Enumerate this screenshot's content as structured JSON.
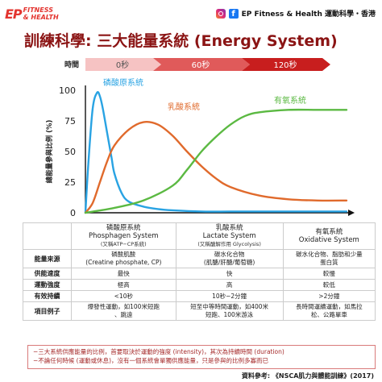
{
  "brand": {
    "logo_ep": "EP",
    "logo_line1": "FITNESS",
    "logo_line2": "& HEALTH",
    "social_text": "EP Fitness & Health  運動科學・香港"
  },
  "title": "訓練科學: 三大能量系統 (Energy System)",
  "colors": {
    "phosphagen": "#29a3e3",
    "lactate": "#e06a2c",
    "oxidative": "#5bb942",
    "title": "#8b1414",
    "arrow_light": "#f6c3c3",
    "arrow_mid": "#e05a5a",
    "arrow_dark": "#c81e1e"
  },
  "timeline": {
    "label": "時間",
    "segments": [
      "0秒",
      "60秒",
      "120秒"
    ]
  },
  "chart_data": {
    "type": "line",
    "ylabel": "總能量參與比例 (%)",
    "ylim": [
      0,
      100
    ],
    "yticks": [
      0,
      25,
      50,
      75,
      100
    ],
    "xlim": [
      0,
      180
    ],
    "x_unit": "秒",
    "series": [
      {
        "name": "磷酸原系統",
        "x": [
          0,
          2,
          5,
          8,
          10,
          12,
          15,
          18,
          20,
          25,
          30,
          40,
          50,
          60,
          80,
          100,
          120,
          150,
          180
        ],
        "y": [
          0,
          40,
          85,
          98,
          95,
          85,
          65,
          45,
          32,
          16,
          9,
          5,
          3,
          2,
          1,
          1,
          1,
          1,
          1
        ]
      },
      {
        "name": "乳酸系統",
        "x": [
          0,
          5,
          10,
          15,
          20,
          30,
          40,
          50,
          60,
          70,
          80,
          90,
          100,
          120,
          140,
          160,
          180
        ],
        "y": [
          0,
          8,
          25,
          42,
          55,
          68,
          74,
          72,
          63,
          50,
          38,
          28,
          21,
          14,
          11,
          10,
          10
        ]
      },
      {
        "name": "有氧系統",
        "x": [
          0,
          20,
          40,
          60,
          70,
          80,
          90,
          100,
          110,
          120,
          140,
          160,
          180
        ],
        "y": [
          0,
          4,
          10,
          22,
          35,
          50,
          62,
          72,
          79,
          82,
          84,
          84,
          84
        ]
      }
    ]
  },
  "table": {
    "columns": [
      {
        "name": "磷酸原系統",
        "en": "Phosphagen System",
        "sub": "(又稱ATP−CP系統)"
      },
      {
        "name": "乳酸系統",
        "en": "Lactate System",
        "sub": "(又稱醣解作用 Glycolysis)"
      },
      {
        "name": "有氧系統",
        "en": "Oxidative System",
        "sub": ""
      }
    ],
    "rows": [
      {
        "label": "能量來源",
        "cells": [
          "磷酸肌酸\n(Creatine phosphate, CP)",
          "碳水化合物\n(肌醣/肝醣/葡萄糖)",
          "碳水化合物、脂肪和少量\n蛋白質"
        ]
      },
      {
        "label": "供能速度",
        "cells": [
          "最快",
          "快",
          "較慢"
        ]
      },
      {
        "label": "運動強度",
        "cells": [
          "極高",
          "高",
          "較低"
        ]
      },
      {
        "label": "有效持續",
        "cells": [
          "<10秒",
          "10秒−2分鐘",
          ">2分鐘"
        ]
      },
      {
        "label": "項目例子",
        "cells": [
          "爆發性運動，如100米短跑\n、跳遠",
          "短至中等時間運動，如400米\n短跑、100米游泳",
          "長時間運續運動，如馬拉\n松、公路單車"
        ]
      }
    ]
  },
  "notes": [
    "−三大系統供應能量的比例，首要取決於運動的強度 (intensity)，其次為持續時間 (duration)",
    "−不論任何時候 (運動或休息)，沒有一個系統會單獨供應能量，只是參與的比例多寡而已"
  ],
  "source": "資料參考: 《NSCA肌力與體能訓練》(2017)"
}
